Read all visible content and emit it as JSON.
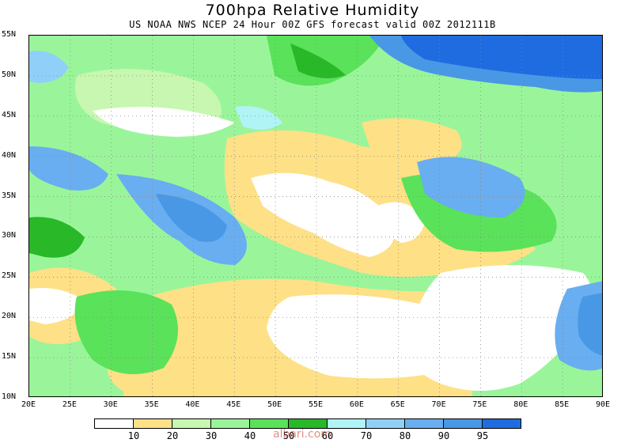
{
  "title": "700hpa Relative Humidity",
  "subtitle": "US NOAA NWS NCEP 24 Hour 00Z GFS forecast valid 00Z 2012111B",
  "watermark": "albari.com",
  "lat_labels": [
    "55N",
    "50N",
    "45N",
    "40N",
    "35N",
    "30N",
    "25N",
    "20N",
    "15N",
    "10N"
  ],
  "lon_labels": [
    "20E",
    "25E",
    "30E",
    "35E",
    "40E",
    "45E",
    "50E",
    "55E",
    "60E",
    "65E",
    "70E",
    "75E",
    "80E",
    "85E",
    "90E"
  ],
  "colorbar": {
    "colors": [
      "#ffffff",
      "#fee086",
      "#c7f7b0",
      "#9af59a",
      "#5ae25a",
      "#28b828",
      "#b0f4f6",
      "#90d0f8",
      "#68aef0",
      "#4898e6",
      "#1e6ce0"
    ],
    "labels": [
      "10",
      "20",
      "30",
      "40",
      "50",
      "60",
      "70",
      "80",
      "90",
      "95"
    ]
  },
  "palette": {
    "dry": "#ffffff",
    "yellow": "#fee086",
    "pale_green": "#c7f7b0",
    "light_green": "#9af59a",
    "green": "#5ae25a",
    "dark_green": "#28b828",
    "light_blue": "#90d0f8",
    "mid_blue": "#68aef0",
    "blue": "#4898e6",
    "deep_blue": "#1e6ce0"
  }
}
